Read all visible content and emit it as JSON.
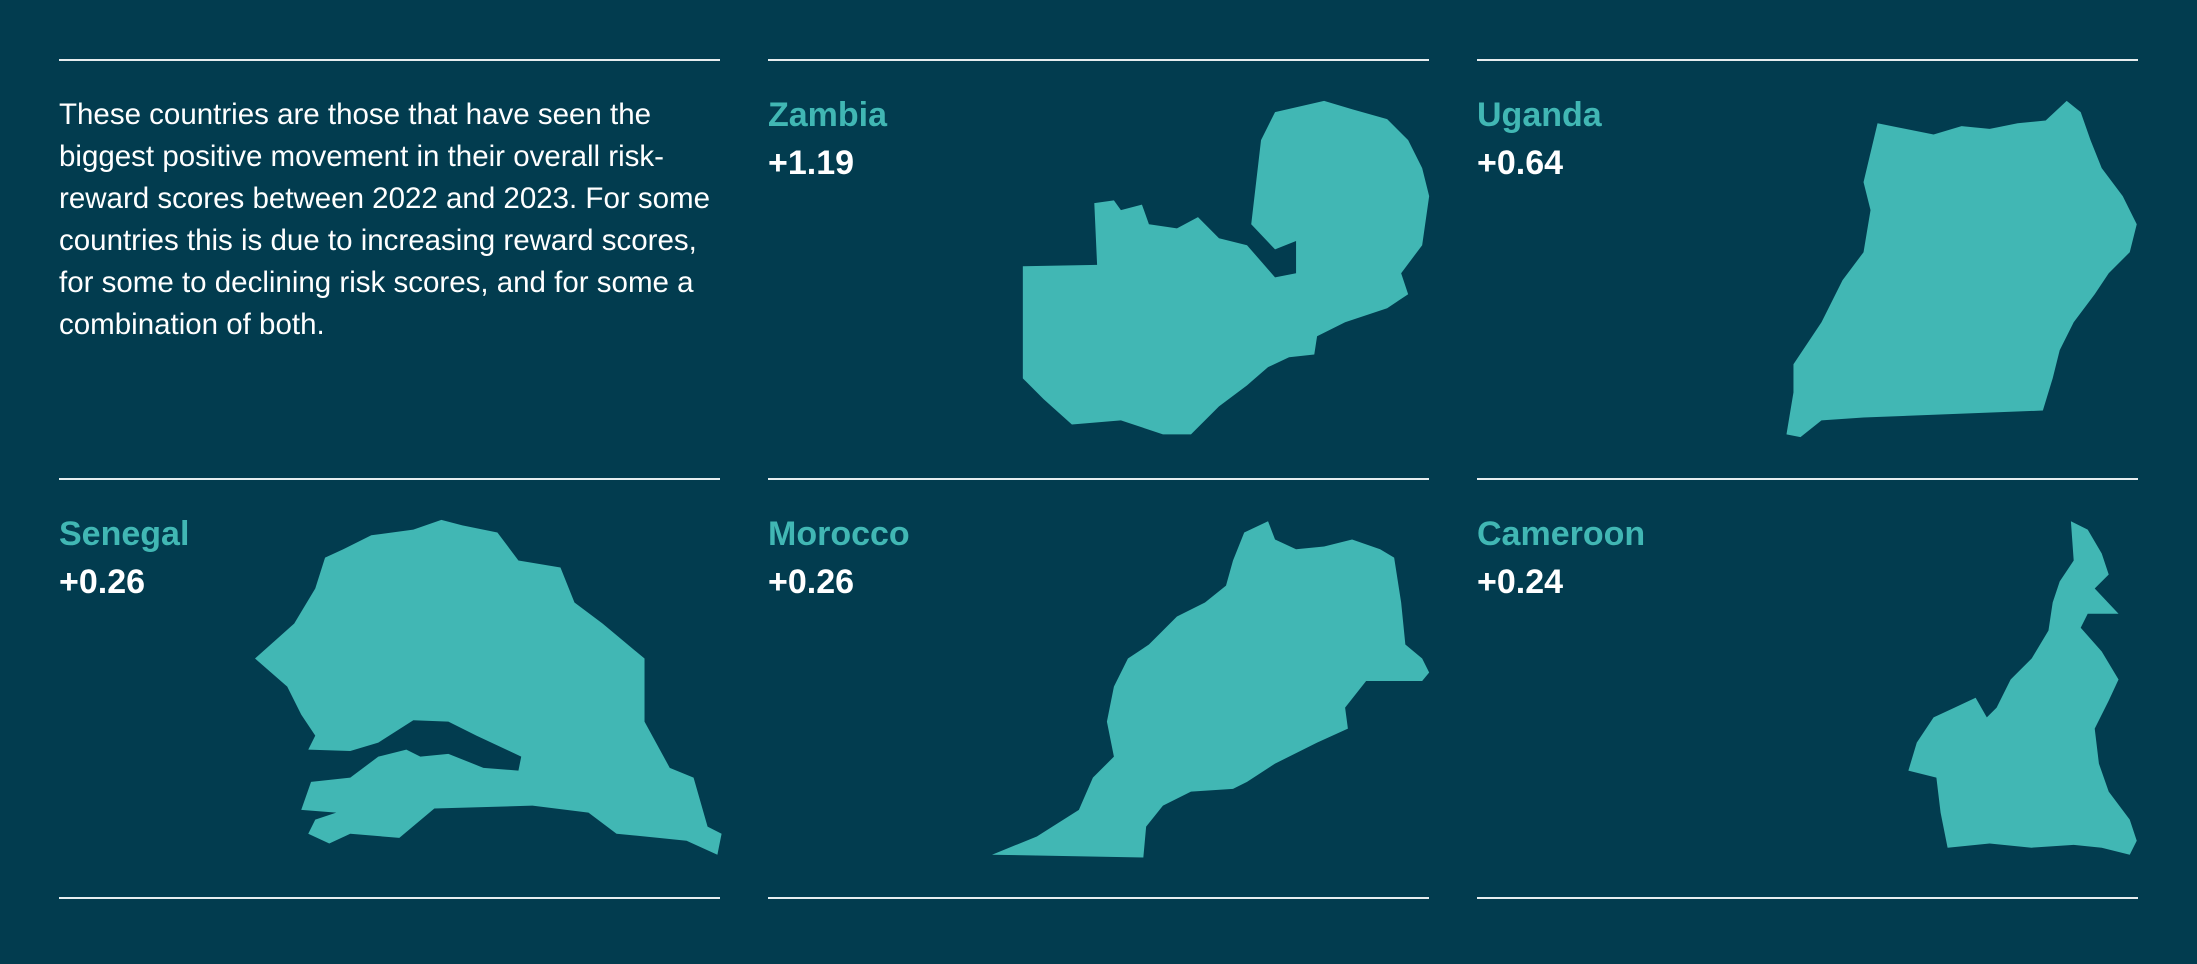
{
  "intro": "These countries are those that have seen the biggest positive movement in their overall risk-reward scores between 2022 and 2023. For some countries this is due to increasing reward scores, for some to declining risk scores, and for some a combination of both.",
  "countries": [
    {
      "name": "Zambia",
      "score": "+1.19"
    },
    {
      "name": "Uganda",
      "score": "+0.64"
    },
    {
      "name": "Senegal",
      "score": "+0.26"
    },
    {
      "name": "Morocco",
      "score": "+0.26"
    },
    {
      "name": "Cameroon",
      "score": "+0.24"
    }
  ]
}
